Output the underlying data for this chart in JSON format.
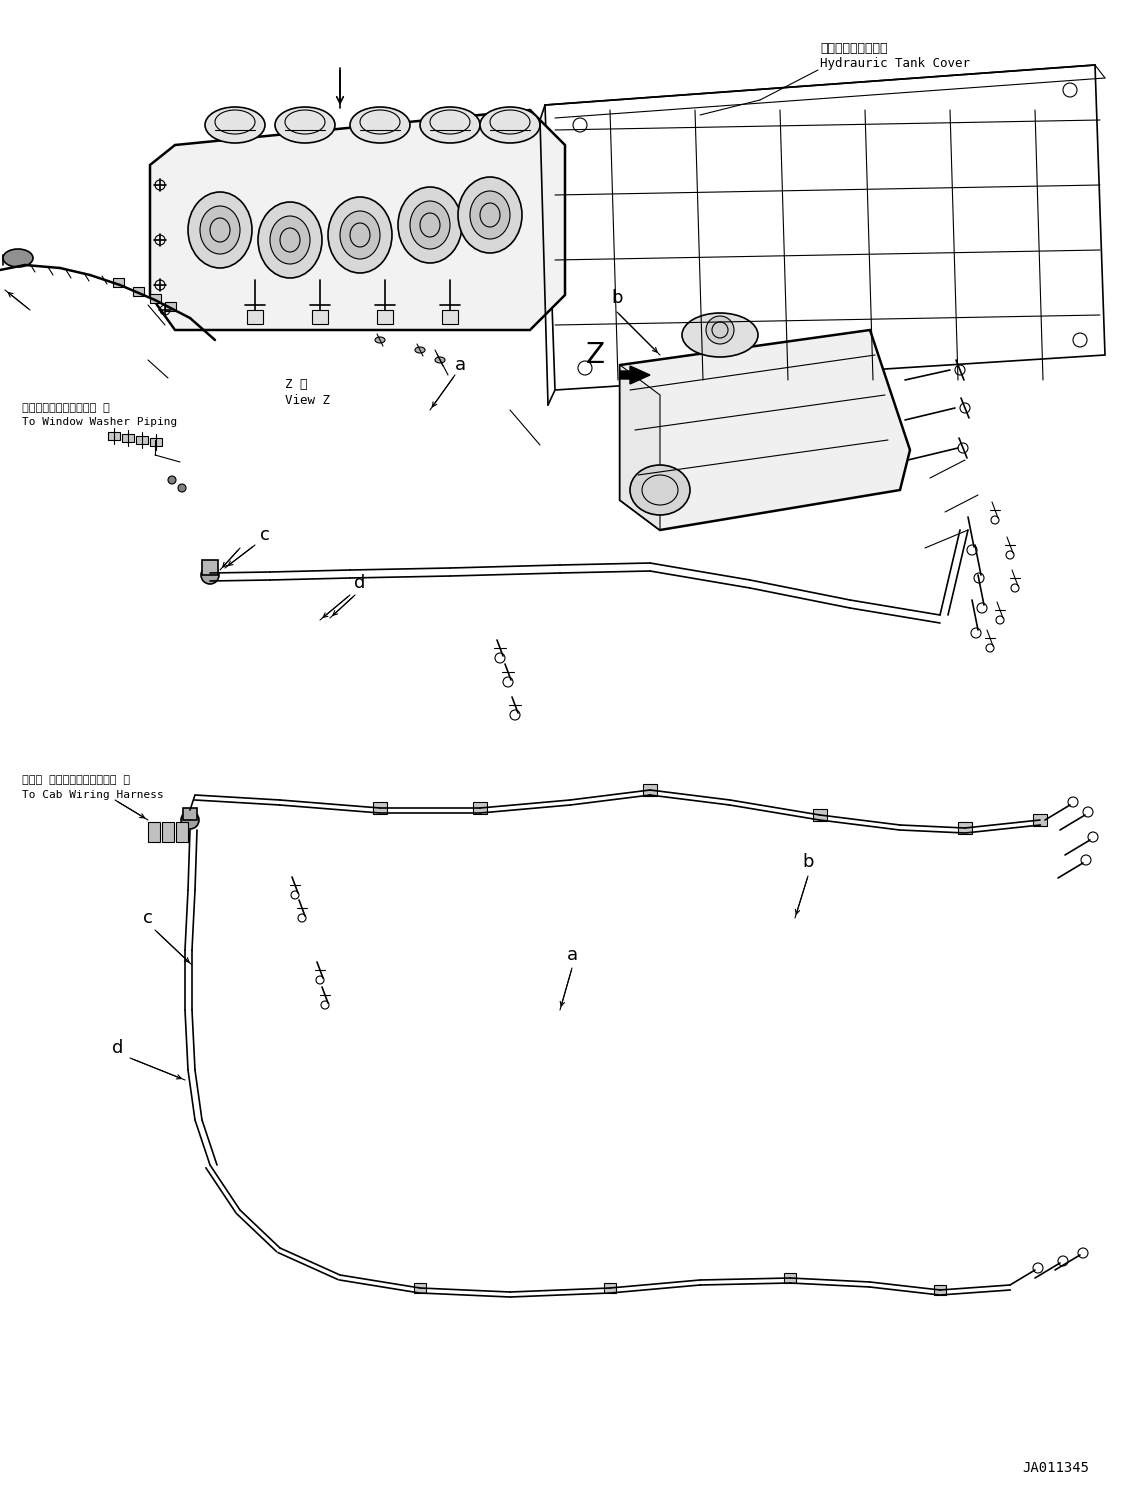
{
  "bg_color": "#ffffff",
  "line_color": "#000000",
  "fig_width": 11.42,
  "fig_height": 14.91,
  "dpi": 100,
  "annotation_text_top_right_line1": "作動油タンクカバー",
  "annotation_text_top_right_line2": "Hydrauric Tank Cover",
  "annotation_text_window_washer_line1": "ウインドウォッシャ配管 へ",
  "annotation_text_window_washer_line2": "To Window Washer Piping",
  "annotation_text_cab_harness_line1": "キャブ ワイヤリングハーネス へ",
  "annotation_text_cab_harness_line2": "To Cab Wiring Harness",
  "view_z_text_line1": "Z 視",
  "view_z_text_line2": "View Z",
  "label_a1": "a",
  "label_b1": "b",
  "label_c1": "c",
  "label_d1": "d",
  "label_a2": "a",
  "label_b2": "b",
  "label_c2": "c",
  "label_d2": "d",
  "label_z": "Z",
  "part_number": "JA011345"
}
